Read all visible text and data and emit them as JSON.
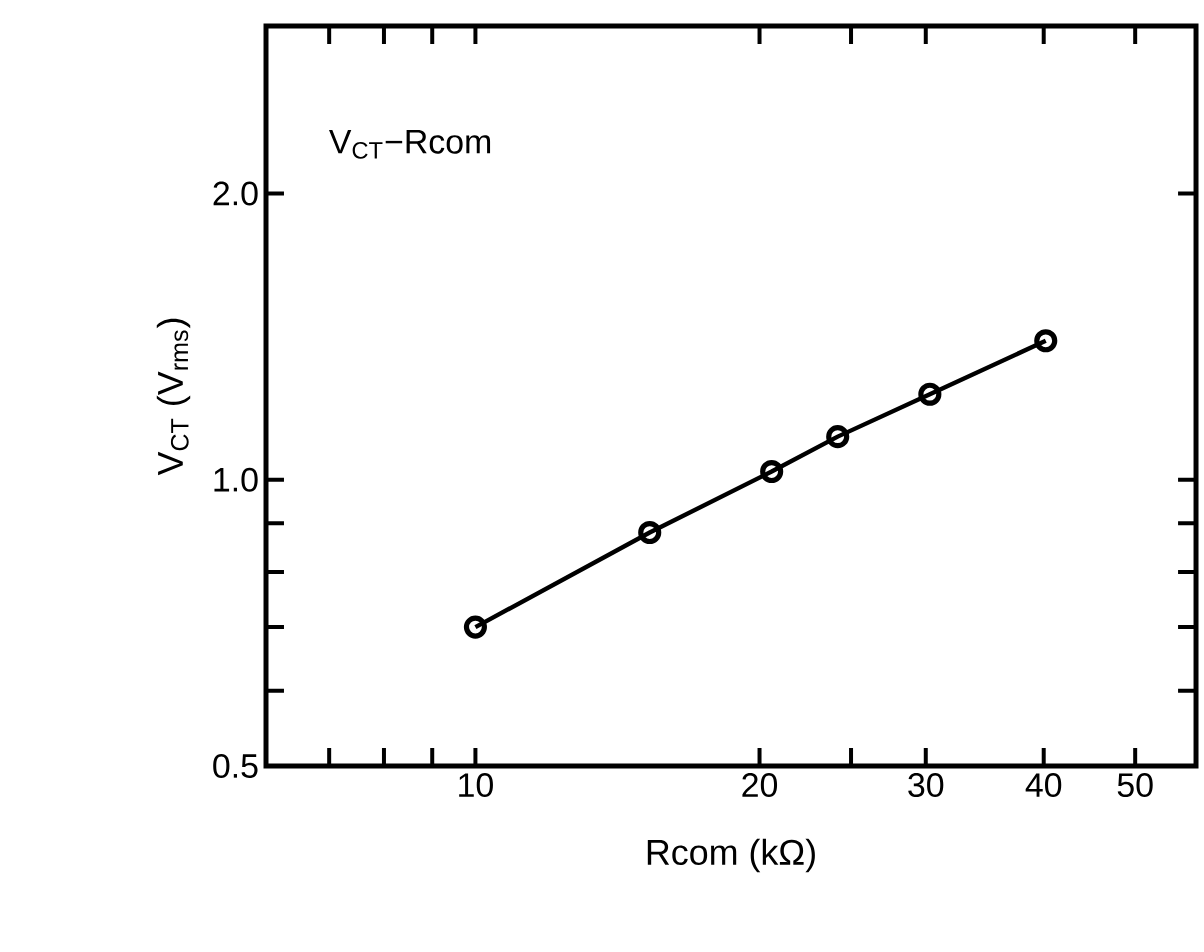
{
  "chart_data": {
    "type": "line",
    "xlabel": "Rcom (kΩ)",
    "ylabel": "V$_{CT}$ (V$_{rms}$)",
    "annotations": [
      "V$_{CT}$−Rcom"
    ],
    "x": [
      10,
      15.3,
      20.6,
      24.2,
      30.3,
      40.2
    ],
    "series": [
      {
        "color": "#000000",
        "values": [
          0.7,
          0.88,
          1.02,
          1.11,
          1.23,
          1.4
        ]
      }
    ],
    "log": "xy",
    "xlim": [
      6,
      58
    ],
    "ylim": [
      0.5,
      3
    ],
    "xticks": [
      {
        "value": 7,
        "label": null
      },
      {
        "value": 8,
        "label": null
      },
      {
        "value": 9,
        "label": null
      },
      10,
      20,
      {
        "value": 25,
        "label": null
      },
      30,
      40,
      50
    ],
    "yticks": [
      0.5,
      {
        "value": 0.6,
        "label": null
      },
      {
        "value": 0.7,
        "label": null
      },
      {
        "value": 0.8,
        "label": null
      },
      {
        "value": 0.9,
        "label": null
      },
      {
        "value": 1,
        "label": "1.0"
      },
      {
        "value": 2,
        "label": "2.0"
      }
    ],
    "grid": false,
    "marker": "circle",
    "line_style": "solid"
  }
}
